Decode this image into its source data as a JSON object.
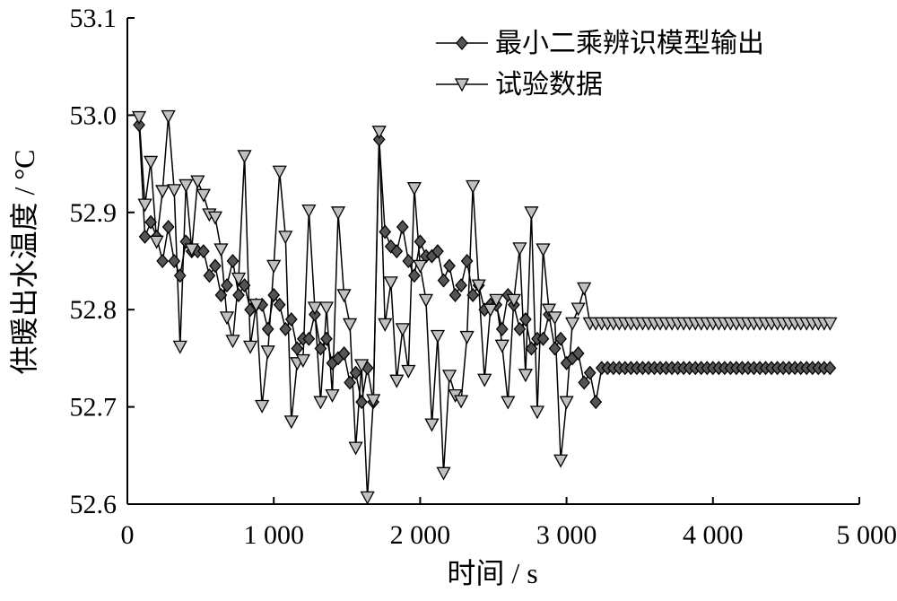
{
  "chart_data": {
    "type": "line",
    "xlabel": "时间 / s",
    "ylabel": "供暖出水温度 / °C",
    "xlim": [
      0,
      5000
    ],
    "ylim": [
      52.6,
      53.1
    ],
    "x_ticks": [
      "0",
      "1 000",
      "2 000",
      "3 000",
      "4 000",
      "5 000"
    ],
    "y_ticks": [
      "52.6",
      "52.7",
      "52.8",
      "52.9",
      "53.0",
      "53.1"
    ],
    "legend_position": "top-right",
    "grid": false,
    "colors": {
      "model_marker": "#555555",
      "data_marker": "#c0c0c0",
      "line": "#000000"
    },
    "x": [
      80,
      120,
      160,
      200,
      240,
      280,
      320,
      360,
      400,
      440,
      480,
      520,
      560,
      600,
      640,
      680,
      720,
      760,
      800,
      840,
      880,
      920,
      960,
      1000,
      1040,
      1080,
      1120,
      1160,
      1200,
      1240,
      1280,
      1320,
      1360,
      1400,
      1440,
      1480,
      1520,
      1560,
      1600,
      1640,
      1680,
      1720,
      1760,
      1800,
      1840,
      1880,
      1920,
      1960,
      2000,
      2040,
      2080,
      2120,
      2160,
      2200,
      2240,
      2280,
      2320,
      2360,
      2400,
      2440,
      2480,
      2520,
      2560,
      2600,
      2640,
      2680,
      2720,
      2760,
      2800,
      2840,
      2880,
      2920,
      2960,
      3000,
      3040,
      3080,
      3120,
      3160,
      3200,
      3240,
      3280,
      3320,
      3360,
      3400,
      3440,
      3480,
      3520,
      3560,
      3600,
      3640,
      3680,
      3720,
      3760,
      3800,
      3840,
      3880,
      3920,
      3960,
      4000,
      4040,
      4080,
      4120,
      4160,
      4200,
      4240,
      4280,
      4320,
      4360,
      4400,
      4440,
      4480,
      4520,
      4560,
      4600,
      4640,
      4680,
      4720,
      4760,
      4800
    ],
    "series": [
      {
        "name": "最小二乘辨识模型输出",
        "marker": "diamond",
        "values": [
          52.99,
          52.875,
          52.89,
          52.875,
          52.85,
          52.885,
          52.85,
          52.835,
          52.87,
          52.86,
          52.86,
          52.86,
          52.835,
          52.845,
          52.815,
          52.825,
          52.85,
          52.815,
          52.825,
          52.8,
          52.805,
          52.805,
          52.78,
          52.815,
          52.805,
          52.78,
          52.79,
          52.76,
          52.77,
          52.77,
          52.795,
          52.76,
          52.77,
          52.745,
          52.75,
          52.755,
          52.725,
          52.735,
          52.705,
          52.74,
          52.705,
          52.975,
          52.88,
          52.865,
          52.86,
          52.885,
          52.85,
          52.835,
          52.87,
          52.855,
          52.855,
          52.86,
          52.83,
          52.845,
          52.815,
          52.825,
          52.85,
          52.815,
          52.825,
          52.8,
          52.805,
          52.805,
          52.78,
          52.815,
          52.805,
          52.78,
          52.79,
          52.76,
          52.77,
          52.77,
          52.795,
          52.76,
          52.77,
          52.745,
          52.75,
          52.755,
          52.725,
          52.735,
          52.705,
          52.74,
          52.74,
          52.74,
          52.74,
          52.74,
          52.74,
          52.74,
          52.74,
          52.74,
          52.74,
          52.74,
          52.74,
          52.74,
          52.74,
          52.74,
          52.74,
          52.74,
          52.74,
          52.74,
          52.74,
          52.74,
          52.74,
          52.74,
          52.74,
          52.74,
          52.74,
          52.74,
          52.74,
          52.74,
          52.74,
          52.74,
          52.74,
          52.74,
          52.74,
          52.74,
          52.74,
          52.74,
          52.74,
          52.74,
          52.74
        ]
      },
      {
        "name": "试验数据",
        "marker": "triangle-down",
        "values": [
          52.998,
          52.908,
          52.952,
          52.87,
          52.922,
          52.999,
          52.923,
          52.762,
          52.928,
          52.862,
          52.932,
          52.918,
          52.898,
          52.895,
          52.862,
          52.792,
          52.768,
          52.832,
          52.958,
          52.762,
          52.805,
          52.701,
          52.757,
          52.845,
          52.942,
          52.875,
          52.685,
          52.745,
          52.748,
          52.902,
          52.802,
          52.705,
          52.802,
          52.712,
          52.9,
          52.815,
          52.785,
          52.658,
          52.743,
          52.607,
          52.707,
          52.983,
          52.785,
          52.828,
          52.727,
          52.78,
          52.737,
          52.925,
          52.845,
          52.81,
          52.682,
          52.773,
          52.632,
          52.732,
          52.712,
          52.706,
          52.772,
          52.927,
          52.825,
          52.728,
          52.8,
          52.81,
          52.763,
          52.705,
          52.81,
          52.863,
          52.733,
          52.9,
          52.695,
          52.862,
          52.8,
          52.792,
          52.645,
          52.705,
          52.786,
          52.801,
          52.822,
          52.786,
          52.786,
          52.786,
          52.786,
          52.786,
          52.786,
          52.786,
          52.786,
          52.786,
          52.786,
          52.786,
          52.786,
          52.786,
          52.786,
          52.786,
          52.786,
          52.786,
          52.786,
          52.786,
          52.786,
          52.786,
          52.786,
          52.786,
          52.786,
          52.786,
          52.786,
          52.786,
          52.786,
          52.786,
          52.786,
          52.786,
          52.786,
          52.786,
          52.786,
          52.786,
          52.786,
          52.786,
          52.786,
          52.786,
          52.786,
          52.786,
          52.786
        ]
      }
    ]
  }
}
